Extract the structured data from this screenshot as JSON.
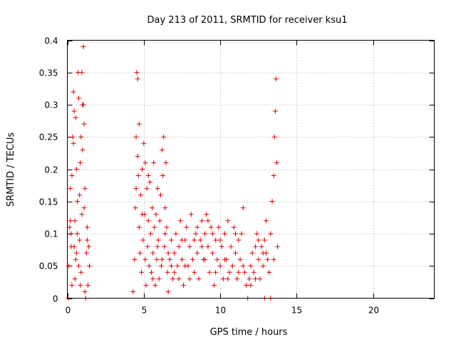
{
  "chart_data": {
    "type": "scatter",
    "title": "Day 213 of 2011, SRMTID for receiver ksu1",
    "xlabel": "GPS time / hours",
    "ylabel": "SRMTID / TECUs",
    "xlim": [
      0,
      24
    ],
    "ylim": [
      0,
      0.4
    ],
    "xticks": [
      0,
      5,
      10,
      15,
      20
    ],
    "xtick_labels": [
      "0",
      "5",
      "10",
      "15",
      "20"
    ],
    "yticks": [
      0,
      0.05,
      0.1,
      0.15,
      0.2,
      0.25,
      0.3,
      0.35,
      0.4
    ],
    "ytick_labels": [
      "0",
      "0.05",
      "0.1",
      "0.15",
      "0.2",
      "0.25",
      "0.3",
      "0.35",
      "0.4"
    ],
    "grid": true,
    "marker": "+",
    "color": "#e00000",
    "series": [
      {
        "name": "SRMTID",
        "points": [
          [
            0.05,
            0.0
          ],
          [
            0.1,
            0.05
          ],
          [
            0.15,
            0.11
          ],
          [
            0.2,
            0.17
          ],
          [
            0.25,
            0.08
          ],
          [
            0.3,
            0.02
          ],
          [
            0.35,
            0.25
          ],
          [
            0.4,
            0.32
          ],
          [
            0.45,
            0.29
          ],
          [
            0.5,
            0.12
          ],
          [
            0.55,
            0.06
          ],
          [
            0.6,
            0.2
          ],
          [
            0.65,
            0.15
          ],
          [
            0.7,
            0.35
          ],
          [
            0.75,
            0.31
          ],
          [
            0.8,
            0.09
          ],
          [
            0.85,
            0.21
          ],
          [
            0.9,
            0.04
          ],
          [
            0.95,
            0.13
          ],
          [
            1.0,
            0.3
          ],
          [
            1.05,
            0.39
          ],
          [
            1.1,
            0.27
          ],
          [
            1.15,
            0.17
          ],
          [
            1.2,
            0.0
          ],
          [
            1.25,
            0.07
          ],
          [
            1.3,
            0.11
          ],
          [
            1.35,
            0.02
          ],
          [
            1.4,
            0.08
          ],
          [
            1.45,
            0.05
          ],
          [
            0.2,
            0.12
          ],
          [
            0.3,
            0.19
          ],
          [
            0.55,
            0.28
          ],
          [
            0.65,
            0.1
          ],
          [
            0.75,
            0.05
          ],
          [
            0.95,
            0.35
          ],
          [
            1.0,
            0.23
          ],
          [
            1.1,
            0.14
          ],
          [
            1.3,
            0.09
          ],
          [
            0.4,
            0.24
          ],
          [
            0.5,
            0.03
          ],
          [
            0.8,
            0.16
          ],
          [
            1.15,
            0.01
          ],
          [
            0.6,
            0.07
          ],
          [
            0.9,
            0.25
          ],
          [
            0.25,
            0.1
          ],
          [
            1.05,
            0.3
          ],
          [
            0.45,
            0.08
          ],
          [
            0.85,
            0.02
          ],
          [
            4.3,
            0.01
          ],
          [
            4.4,
            0.06
          ],
          [
            4.45,
            0.14
          ],
          [
            4.5,
            0.25
          ],
          [
            4.55,
            0.35
          ],
          [
            4.6,
            0.34
          ],
          [
            4.65,
            0.19
          ],
          [
            4.7,
            0.11
          ],
          [
            4.75,
            0.07
          ],
          [
            4.8,
            0.16
          ],
          [
            4.85,
            0.04
          ],
          [
            4.9,
            0.2
          ],
          [
            4.95,
            0.09
          ],
          [
            5.0,
            0.24
          ],
          [
            5.05,
            0.13
          ],
          [
            5.1,
            0.21
          ],
          [
            5.15,
            0.02
          ],
          [
            5.2,
            0.17
          ],
          [
            5.25,
            0.08
          ],
          [
            5.3,
            0.12
          ],
          [
            5.35,
            0.05
          ],
          [
            5.4,
            0.18
          ],
          [
            5.45,
            0.1
          ],
          [
            5.5,
            0.04
          ],
          [
            5.55,
            0.14
          ],
          [
            5.6,
            0.07
          ],
          [
            5.65,
            0.21
          ],
          [
            5.7,
            0.11
          ],
          [
            5.75,
            0.02
          ],
          [
            5.8,
            0.13
          ],
          [
            5.85,
            0.06
          ],
          [
            5.9,
            0.17
          ],
          [
            5.95,
            0.09
          ],
          [
            6.0,
            0.03
          ],
          [
            6.05,
            0.12
          ],
          [
            6.1,
            0.16
          ],
          [
            6.15,
            0.05
          ],
          [
            6.2,
            0.23
          ],
          [
            6.25,
            0.19
          ],
          [
            6.3,
            0.25
          ],
          [
            6.35,
            0.08
          ],
          [
            6.4,
            0.14
          ],
          [
            6.45,
            0.21
          ],
          [
            6.5,
            0.11
          ],
          [
            6.55,
            0.04
          ],
          [
            6.6,
            0.07
          ],
          [
            4.5,
            0.17
          ],
          [
            4.7,
            0.27
          ],
          [
            4.9,
            0.13
          ],
          [
            5.1,
            0.06
          ],
          [
            5.3,
            0.19
          ],
          [
            5.6,
            0.03
          ],
          [
            5.9,
            0.08
          ],
          [
            6.2,
            0.06
          ],
          [
            6.4,
            0.1
          ],
          [
            4.6,
            0.22
          ],
          [
            6.6,
            0.01
          ],
          [
            6.7,
            0.06
          ],
          [
            6.8,
            0.09
          ],
          [
            6.9,
            0.03
          ],
          [
            7.0,
            0.07
          ],
          [
            7.1,
            0.1
          ],
          [
            7.2,
            0.05
          ],
          [
            7.3,
            0.08
          ],
          [
            7.4,
            0.12
          ],
          [
            7.5,
            0.06
          ],
          [
            7.6,
            0.02
          ],
          [
            7.7,
            0.09
          ],
          [
            7.8,
            0.11
          ],
          [
            7.9,
            0.05
          ],
          [
            8.0,
            0.08
          ],
          [
            8.1,
            0.13
          ],
          [
            8.2,
            0.06
          ],
          [
            8.3,
            0.04
          ],
          [
            8.4,
            0.1
          ],
          [
            8.5,
            0.07
          ],
          [
            8.6,
            0.03
          ],
          [
            8.7,
            0.09
          ],
          [
            8.8,
            0.12
          ],
          [
            8.9,
            0.06
          ],
          [
            9.0,
            0.1
          ],
          [
            9.1,
            0.13
          ],
          [
            9.2,
            0.08
          ],
          [
            9.3,
            0.04
          ],
          [
            9.4,
            0.11
          ],
          [
            9.5,
            0.07
          ],
          [
            9.6,
            0.02
          ],
          [
            9.7,
            0.09
          ],
          [
            9.8,
            0.06
          ],
          [
            9.9,
            0.11
          ],
          [
            10.0,
            0.05
          ],
          [
            10.1,
            0.08
          ],
          [
            10.2,
            0.03
          ],
          [
            10.3,
            0.1
          ],
          [
            10.4,
            0.06
          ],
          [
            10.5,
            0.12
          ],
          [
            10.6,
            0.04
          ],
          [
            10.7,
            0.08
          ],
          [
            10.8,
            0.05
          ],
          [
            10.9,
            0.11
          ],
          [
            11.0,
            0.07
          ],
          [
            11.1,
            0.03
          ],
          [
            11.2,
            0.09
          ],
          [
            11.3,
            0.06
          ],
          [
            11.4,
            0.1
          ],
          [
            11.5,
            0.14
          ],
          [
            11.6,
            0.04
          ],
          [
            11.7,
            0.02
          ],
          [
            11.8,
            0.0
          ],
          [
            11.9,
            0.03
          ],
          [
            12.0,
            0.05
          ],
          [
            12.1,
            0.07
          ],
          [
            12.2,
            0.04
          ],
          [
            12.3,
            0.08
          ],
          [
            12.4,
            0.1
          ],
          [
            12.5,
            0.06
          ],
          [
            12.6,
            0.03
          ],
          [
            12.7,
            0.08
          ],
          [
            12.8,
            0.05
          ],
          [
            12.9,
            0.09
          ],
          [
            13.0,
            0.12
          ],
          [
            13.1,
            0.06
          ],
          [
            13.2,
            0.04
          ],
          [
            13.3,
            0.1
          ],
          [
            13.4,
            0.15
          ],
          [
            13.5,
            0.19
          ],
          [
            13.55,
            0.25
          ],
          [
            13.6,
            0.29
          ],
          [
            13.65,
            0.34
          ],
          [
            13.7,
            0.21
          ],
          [
            13.75,
            0.08
          ],
          [
            13.5,
            0.06
          ],
          [
            13.3,
            0.0
          ],
          [
            12.9,
            0.0
          ],
          [
            7.0,
            0.04
          ],
          [
            7.5,
            0.09
          ],
          [
            8.0,
            0.03
          ],
          [
            8.5,
            0.11
          ],
          [
            9.0,
            0.06
          ],
          [
            9.5,
            0.1
          ],
          [
            10.0,
            0.09
          ],
          [
            10.5,
            0.03
          ],
          [
            11.0,
            0.1
          ],
          [
            11.5,
            0.05
          ],
          [
            12.0,
            0.02
          ],
          [
            12.5,
            0.09
          ],
          [
            13.0,
            0.07
          ],
          [
            6.8,
            0.05
          ],
          [
            7.7,
            0.05
          ],
          [
            8.8,
            0.08
          ],
          [
            9.2,
            0.12
          ],
          [
            10.3,
            0.06
          ],
          [
            11.2,
            0.04
          ],
          [
            12.3,
            0.03
          ],
          [
            12.8,
            0.07
          ],
          [
            9.7,
            0.04
          ],
          [
            8.3,
            0.09
          ],
          [
            7.3,
            0.03
          ]
        ]
      }
    ]
  }
}
